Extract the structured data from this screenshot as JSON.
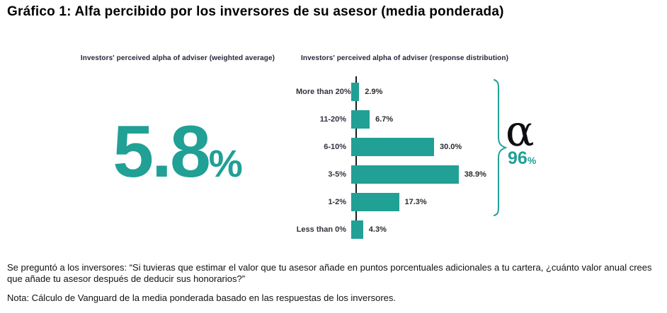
{
  "title": "Gráfico 1: Alfa percibido por los inversores de su asesor (media ponderada)",
  "left_panel": {
    "header": "Investors' perceived alpha of adviser (weighted average)",
    "value": "5.8",
    "unit": "%"
  },
  "right_panel": {
    "header": "Investors' perceived alpha of adviser (response distribution)",
    "alpha_symbol": "α",
    "share_value": "96",
    "share_unit": "%"
  },
  "chart_data": {
    "type": "bar",
    "orientation": "horizontal",
    "title": "Investors' perceived alpha of adviser (response distribution)",
    "categories": [
      "More than 20%",
      "11-20%",
      "6-10%",
      "3-5%",
      "1-2%",
      "Less than 0%"
    ],
    "values": [
      2.9,
      6.7,
      30.0,
      38.9,
      17.3,
      4.3
    ],
    "value_labels": [
      "2.9%",
      "6.7%",
      "30.0%",
      "38.9%",
      "17.3%",
      "4.3%"
    ],
    "xlabel": "",
    "ylabel": "",
    "xlim": [
      0,
      45
    ],
    "grid": false,
    "legend": "none",
    "bar_color": "#21A095",
    "annotation": {
      "symbol": "α",
      "value": "96%",
      "meaning": "share of responses with perceived alpha above 0% (brace spans the top five bars)"
    }
  },
  "footnotes": {
    "question": "Se preguntó a los inversores: “Si tuvieras que estimar el valor que tu asesor añade en puntos porcentuales adicionales a tu cartera, ¿cuánto valor anual crees que añade tu asesor después de deducir sus honorarios?”",
    "note": "Nota: Cálculo de Vanguard de la media ponderada basado en las respuestas de los inversores."
  },
  "colors": {
    "accent_teal": "#21A095",
    "axis_dark": "#1b1b1b",
    "text_dark": "#111111"
  }
}
